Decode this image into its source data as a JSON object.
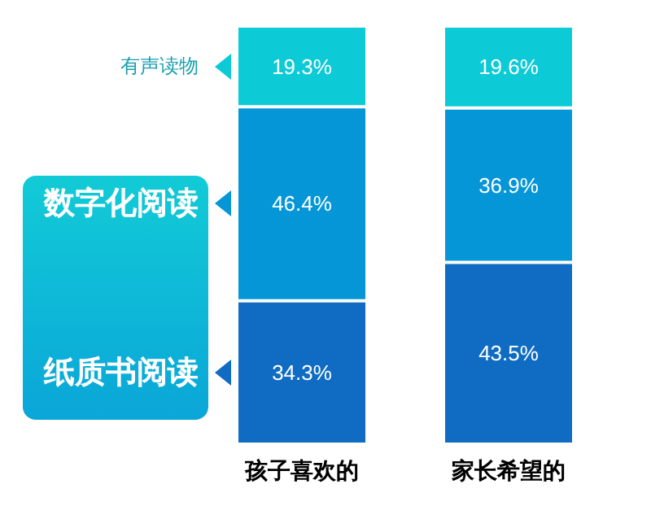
{
  "chart_data": {
    "type": "bar",
    "stacked": true,
    "categories": [
      "孩子喜欢的",
      "家长希望的"
    ],
    "series": [
      {
        "name": "纸质书阅读",
        "color": "#0f6cc2",
        "values": [
          34.3,
          43.5
        ],
        "value_labels": [
          "34.3%",
          "43.5%"
        ]
      },
      {
        "name": "数字化阅读",
        "color": "#0596d8",
        "values": [
          46.4,
          36.9
        ],
        "value_labels": [
          "46.4%",
          "36.9%"
        ]
      },
      {
        "name": "有声读物",
        "color": "#0ccbd6",
        "values": [
          19.3,
          19.6
        ],
        "value_labels": [
          "19.3%",
          "19.6%"
        ]
      }
    ],
    "legend": "left",
    "grid": false
  }
}
